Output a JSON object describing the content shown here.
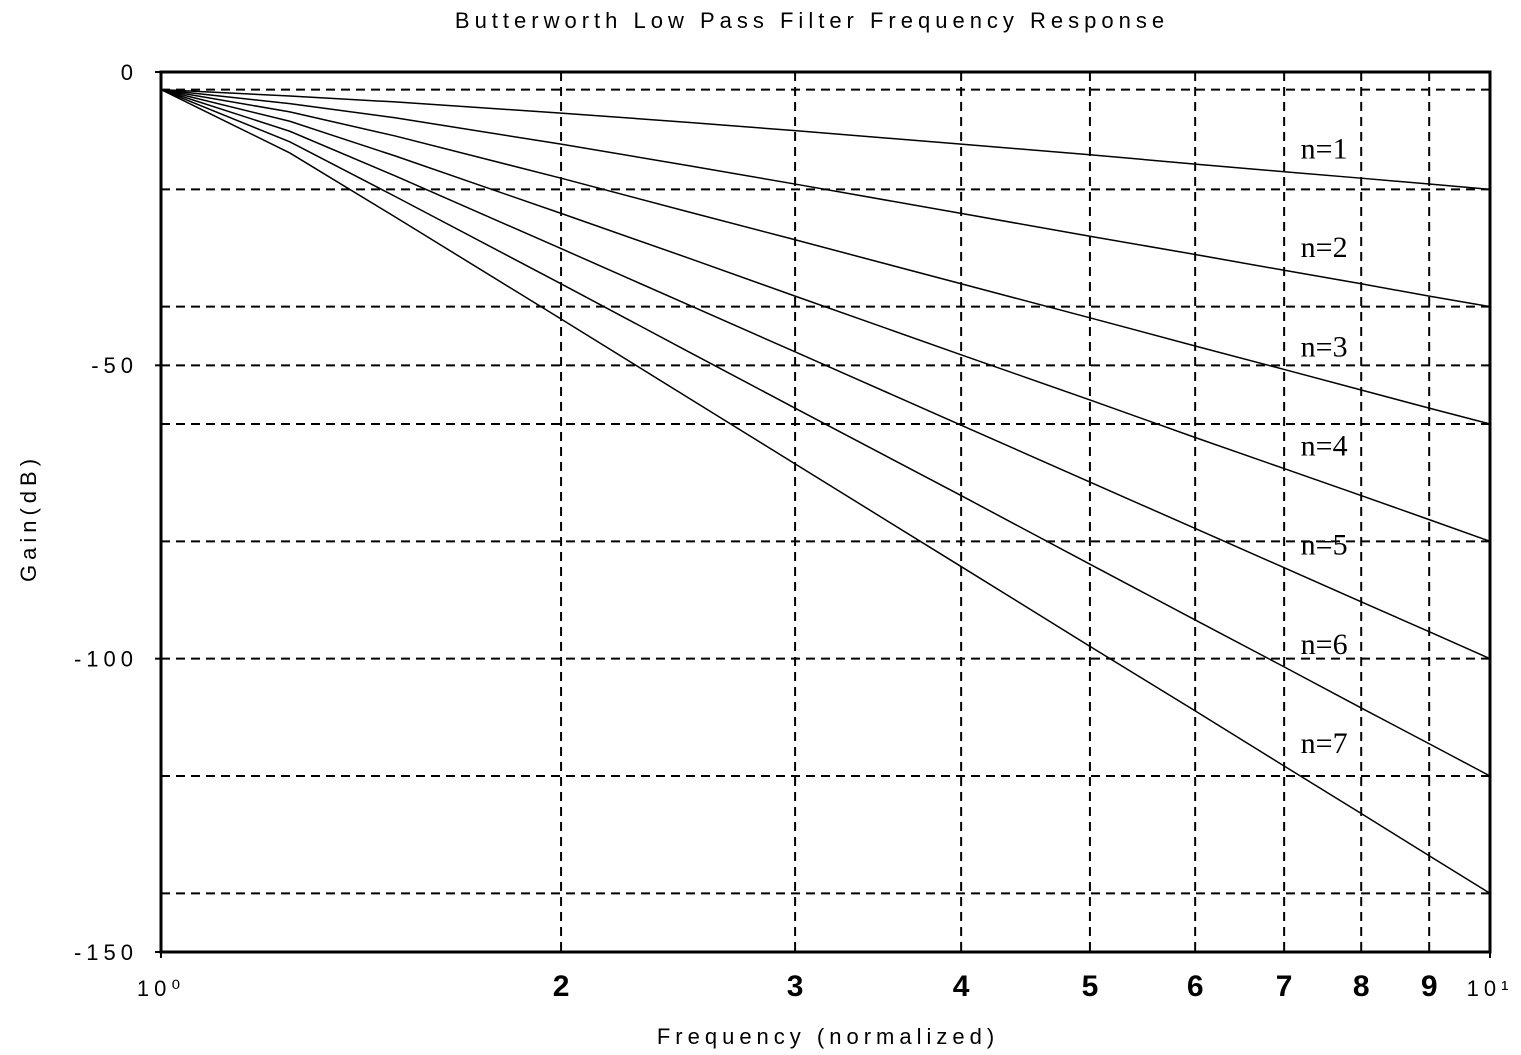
{
  "chart_data": {
    "type": "line",
    "title": "Butterworth Low Pass Filter Frequency Response",
    "xlabel": "Frequency (normalized)",
    "ylabel": "Gain(dB)",
    "xscale": "log",
    "x": [
      1,
      1.25,
      1.5,
      2,
      2.5,
      3,
      4,
      5,
      6,
      7,
      8,
      9,
      10
    ],
    "series": [
      {
        "name": "n=1",
        "color": "#000000",
        "values": [
          -3.0,
          -4.1,
          -5.1,
          -7.0,
          -8.6,
          -10.0,
          -12.3,
          -14.1,
          -15.7,
          -17.0,
          -18.1,
          -19.1,
          -20.0
        ]
      },
      {
        "name": "n=2",
        "color": "#000000",
        "values": [
          -3.0,
          -5.4,
          -7.8,
          -12.3,
          -16.0,
          -19.1,
          -24.1,
          -28.0,
          -31.1,
          -33.8,
          -36.1,
          -38.2,
          -40.0
        ]
      },
      {
        "name": "n=3",
        "color": "#000000",
        "values": [
          -3.0,
          -6.8,
          -10.9,
          -18.1,
          -23.9,
          -28.6,
          -36.1,
          -41.9,
          -46.7,
          -50.7,
          -54.2,
          -57.3,
          -60.0
        ]
      },
      {
        "name": "n=4",
        "color": "#000000",
        "values": [
          -3.0,
          -8.4,
          -14.3,
          -24.1,
          -31.8,
          -38.2,
          -48.2,
          -55.9,
          -62.3,
          -67.6,
          -72.2,
          -76.3,
          -80.0
        ]
      },
      {
        "name": "n=5",
        "color": "#000000",
        "values": [
          -3.0,
          -10.1,
          -17.7,
          -30.1,
          -39.8,
          -47.7,
          -60.2,
          -69.9,
          -77.8,
          -84.5,
          -90.3,
          -95.4,
          -100.0
        ]
      },
      {
        "name": "n=6",
        "color": "#000000",
        "values": [
          -3.0,
          -11.9,
          -21.2,
          -36.1,
          -47.8,
          -57.3,
          -72.2,
          -83.9,
          -93.4,
          -101.4,
          -108.4,
          -114.5,
          -120.0
        ]
      },
      {
        "name": "n=7",
        "color": "#000000",
        "values": [
          -3.0,
          -13.8,
          -24.7,
          -42.1,
          -55.7,
          -66.8,
          -84.3,
          -97.9,
          -108.9,
          -118.3,
          -126.4,
          -133.6,
          -140.0
        ]
      }
    ],
    "xlim": [
      1,
      10
    ],
    "xticks": [
      {
        "value": 1,
        "label": "10⁰"
      },
      2,
      3,
      4,
      5,
      6,
      7,
      8,
      9,
      {
        "value": 10,
        "label": "10¹"
      }
    ],
    "ylim": [
      -150,
      0
    ],
    "yticks": [
      0,
      -50,
      -100,
      -150
    ],
    "ygrid": [
      -3,
      -20,
      -40,
      -50,
      -60,
      -80,
      -100,
      -120,
      -140
    ],
    "grid": true
  }
}
